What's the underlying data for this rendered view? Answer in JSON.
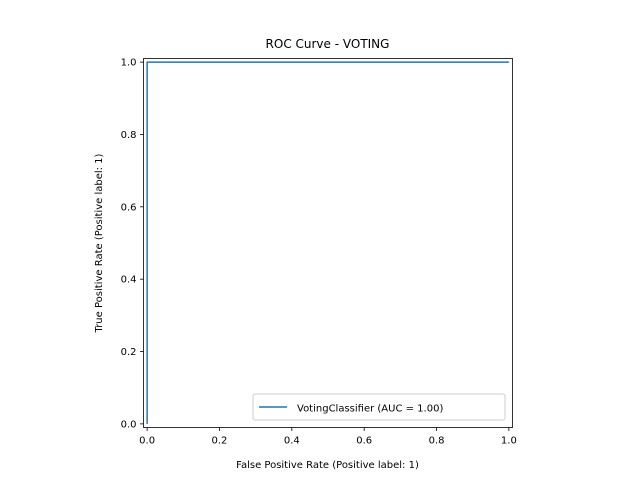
{
  "chart_data": {
    "type": "line",
    "title": "ROC Curve - VOTING",
    "xlabel": "False Positive Rate (Positive label: 1)",
    "ylabel": "True Positive Rate (Positive label: 1)",
    "xlim": [
      -0.01,
      1.01
    ],
    "ylim": [
      -0.01,
      1.01
    ],
    "xticks": [
      0.0,
      0.2,
      0.4,
      0.6,
      0.8,
      1.0
    ],
    "xtick_labels": [
      "0.0",
      "0.2",
      "0.4",
      "0.6",
      "0.8",
      "1.0"
    ],
    "yticks": [
      0.0,
      0.2,
      0.4,
      0.6,
      0.8,
      1.0
    ],
    "ytick_labels": [
      "0.0",
      "0.2",
      "0.4",
      "0.6",
      "0.8",
      "1.0"
    ],
    "grid": false,
    "legend_position": "lower-right",
    "series": [
      {
        "name": "VotingClassifier (AUC = 1.00)",
        "color": "#1f77b4",
        "x": [
          0.0,
          0.0,
          1.0
        ],
        "y": [
          0.0,
          1.0,
          1.0
        ]
      }
    ]
  }
}
